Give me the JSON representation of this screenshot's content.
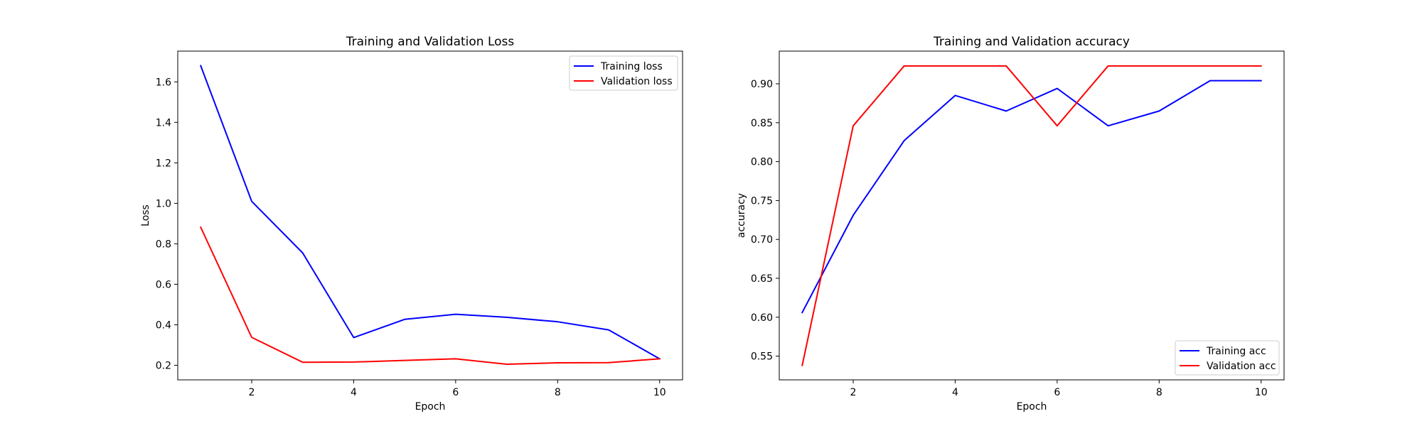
{
  "chart_data": [
    {
      "type": "line",
      "title": "Training and Validation Loss",
      "xlabel": "Epoch",
      "ylabel": "Loss",
      "x": [
        1,
        2,
        3,
        4,
        5,
        6,
        7,
        8,
        9,
        10
      ],
      "xlim": [
        0.55,
        10.45
      ],
      "ylim": [
        0.128,
        1.752
      ],
      "xticks": [
        2,
        4,
        6,
        8,
        10
      ],
      "yticks": [
        0.2,
        0.4,
        0.6,
        0.8,
        1.0,
        1.2,
        1.4,
        1.6
      ],
      "ytick_decimals": 1,
      "grid": false,
      "legend_position": "upper right",
      "series": [
        {
          "name": "Training loss",
          "color": "#0000ff",
          "values": [
            1.68,
            1.01,
            0.755,
            0.337,
            0.427,
            0.452,
            0.437,
            0.415,
            0.375,
            0.232
          ]
        },
        {
          "name": "Validation loss",
          "color": "#ff0000",
          "values": [
            0.882,
            0.338,
            0.215,
            0.216,
            0.224,
            0.232,
            0.205,
            0.212,
            0.213,
            0.232
          ]
        }
      ]
    },
    {
      "type": "line",
      "title": "Training and Validation accuracy",
      "xlabel": "Epoch",
      "ylabel": "accuracy",
      "x": [
        1,
        2,
        3,
        4,
        5,
        6,
        7,
        8,
        9,
        10
      ],
      "xlim": [
        0.55,
        10.45
      ],
      "ylim": [
        0.5195,
        0.942
      ],
      "xticks": [
        2,
        4,
        6,
        8,
        10
      ],
      "yticks": [
        0.55,
        0.6,
        0.65,
        0.7,
        0.75,
        0.8,
        0.85,
        0.9
      ],
      "ytick_decimals": 2,
      "grid": false,
      "legend_position": "lower right",
      "series": [
        {
          "name": "Training acc",
          "color": "#0000ff",
          "values": [
            0.606,
            0.731,
            0.827,
            0.885,
            0.865,
            0.894,
            0.846,
            0.865,
            0.904,
            0.904
          ]
        },
        {
          "name": "Validation acc",
          "color": "#ff0000",
          "values": [
            0.538,
            0.846,
            0.923,
            0.923,
            0.923,
            0.846,
            0.923,
            0.923,
            0.923,
            0.923
          ]
        }
      ]
    }
  ]
}
